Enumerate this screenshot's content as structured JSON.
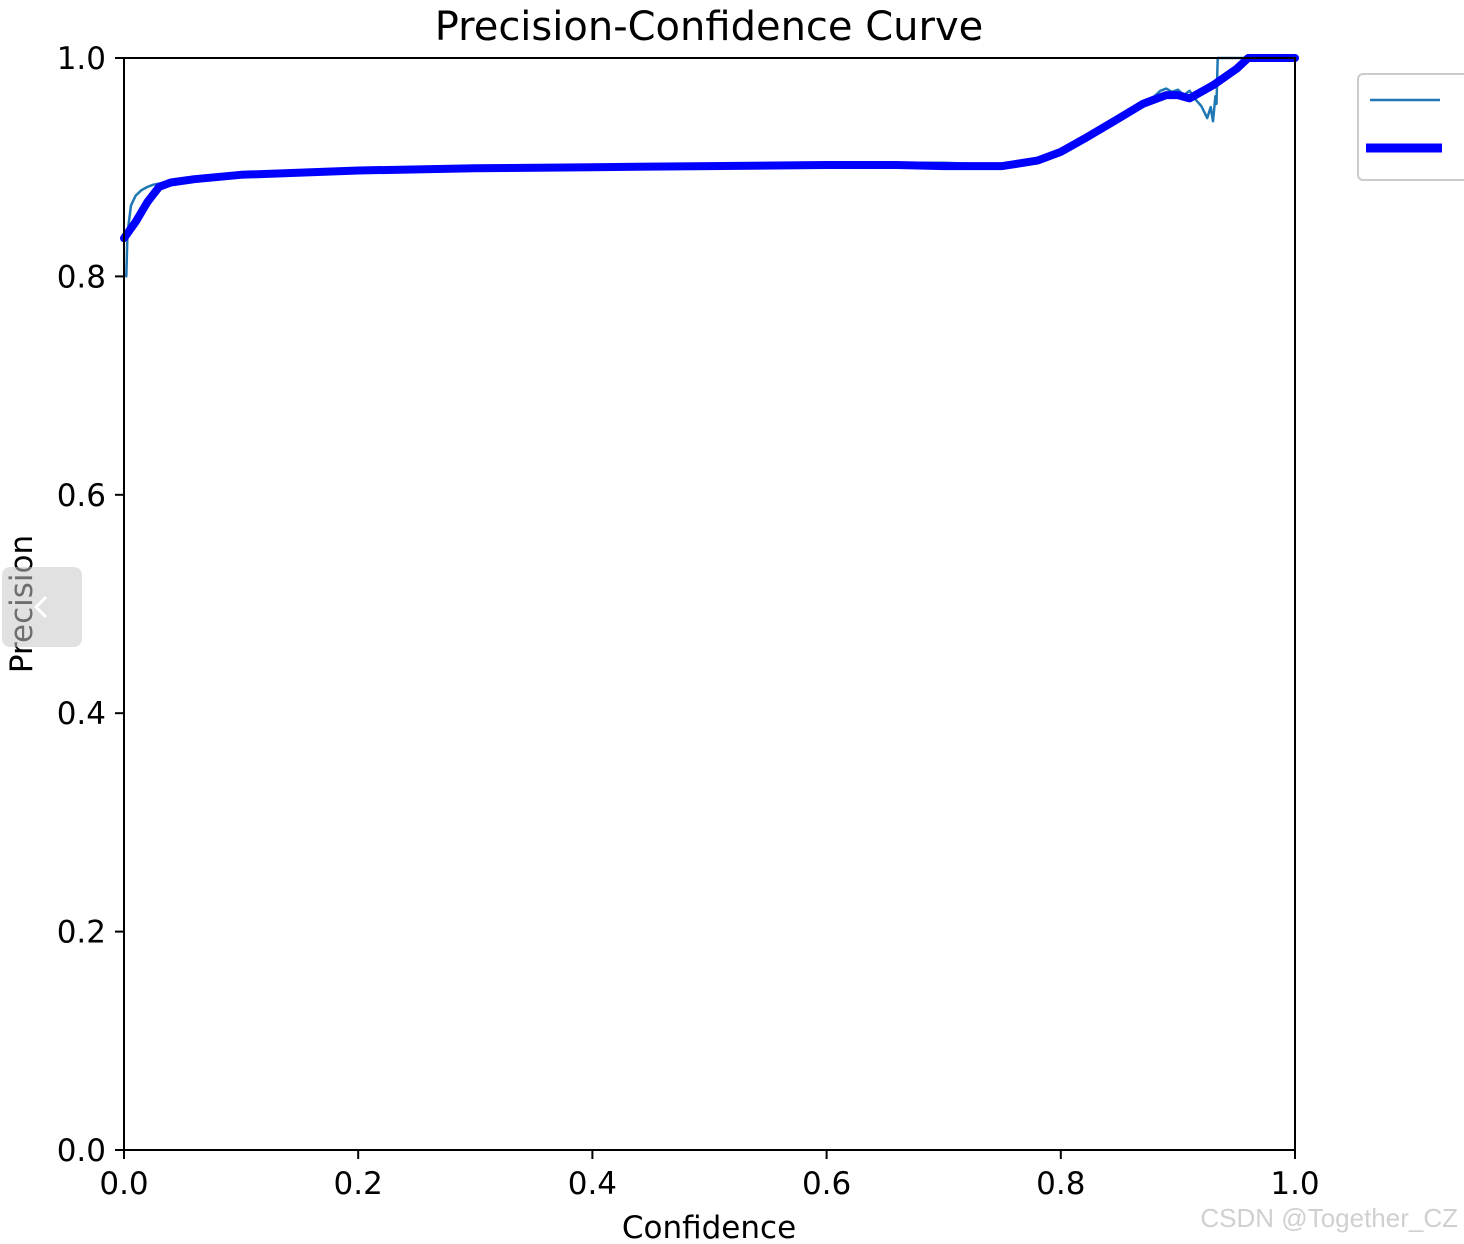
{
  "chart_data": {
    "type": "line",
    "title": "Precision-Confidence Curve",
    "xlabel": "Confidence",
    "ylabel": "Precision",
    "xlim": [
      0,
      1
    ],
    "ylim": [
      0,
      1
    ],
    "xticks": [
      "0.0",
      "0.2",
      "0.4",
      "0.6",
      "0.8",
      "1.0"
    ],
    "yticks": [
      "0.0",
      "0.2",
      "0.4",
      "0.6",
      "0.8",
      "1.0"
    ],
    "grid": false,
    "legend_placement": "outside-top-right",
    "series": [
      {
        "color": "#1f77b4",
        "style": "thin",
        "x": [
          0.002,
          0.003,
          0.006,
          0.01,
          0.015,
          0.02,
          0.025,
          0.03,
          0.035,
          0.05,
          0.1,
          0.2,
          0.3,
          0.4,
          0.5,
          0.6,
          0.66,
          0.7,
          0.75,
          0.78,
          0.8,
          0.82,
          0.85,
          0.87,
          0.88,
          0.885,
          0.89,
          0.895,
          0.9,
          0.905,
          0.91,
          0.915,
          0.92,
          0.925,
          0.928,
          0.93,
          0.932,
          0.933,
          0.934,
          0.935,
          0.94,
          0.96,
          1.0
        ],
        "y": [
          0.8,
          0.84,
          0.865,
          0.874,
          0.879,
          0.882,
          0.884,
          0.885,
          0.886,
          0.889,
          0.894,
          0.898,
          0.9,
          0.902,
          0.902,
          0.903,
          0.904,
          0.904,
          0.902,
          0.907,
          0.915,
          0.926,
          0.945,
          0.96,
          0.965,
          0.97,
          0.972,
          0.969,
          0.971,
          0.966,
          0.97,
          0.962,
          0.956,
          0.945,
          0.955,
          0.942,
          0.965,
          0.958,
          1.0,
          1.0,
          1.0,
          1.0,
          1.0
        ]
      },
      {
        "color": "#0000ff",
        "style": "thick",
        "x": [
          0.0,
          0.01,
          0.02,
          0.03,
          0.04,
          0.06,
          0.1,
          0.2,
          0.3,
          0.4,
          0.5,
          0.6,
          0.66,
          0.7,
          0.75,
          0.78,
          0.8,
          0.82,
          0.85,
          0.87,
          0.89,
          0.9,
          0.91,
          0.93,
          0.95,
          0.96,
          0.97,
          1.0
        ],
        "y": [
          0.835,
          0.85,
          0.868,
          0.882,
          0.886,
          0.889,
          0.893,
          0.897,
          0.899,
          0.9,
          0.901,
          0.902,
          0.902,
          0.901,
          0.901,
          0.906,
          0.914,
          0.926,
          0.945,
          0.958,
          0.966,
          0.966,
          0.963,
          0.975,
          0.99,
          1.0,
          1.0,
          1.0
        ]
      }
    ]
  },
  "watermark": "CSDN @Together_CZ"
}
